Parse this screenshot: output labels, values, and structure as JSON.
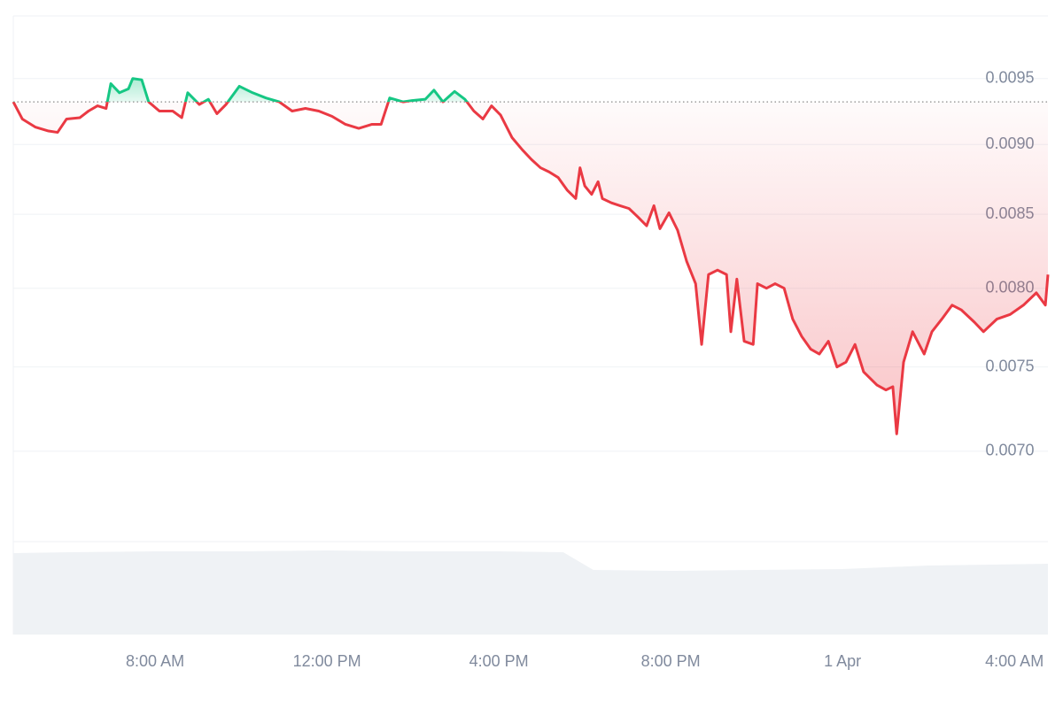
{
  "chart_data": {
    "type": "line",
    "log_scale": true,
    "grid": true,
    "xlim": [
      4.7,
      28.78
    ],
    "ylim": [
      0.0065,
      0.01
    ],
    "xticks": [
      {
        "value": 8,
        "label": "8:00 AM"
      },
      {
        "value": 12,
        "label": "12:00 PM"
      },
      {
        "value": 16,
        "label": "4:00 PM"
      },
      {
        "value": 20,
        "label": "8:00 PM"
      },
      {
        "value": 24,
        "label": "1 Apr"
      },
      {
        "value": 28,
        "label": "4:00 AM"
      }
    ],
    "yticks": [
      0.0095,
      {
        "value": 0.009,
        "label": "0.0090"
      },
      0.0085,
      {
        "value": 0.008,
        "label": "0.0080"
      },
      0.0075,
      {
        "value": 0.007,
        "label": "0.0070"
      }
    ],
    "baseline": 0.00932,
    "up_color": "#16c784",
    "down_color": "#ea3943",
    "x": [
      4.7,
      4.91,
      5.21,
      5.52,
      5.73,
      5.94,
      6.25,
      6.45,
      6.66,
      6.86,
      6.97,
      7.17,
      7.38,
      7.48,
      7.69,
      7.85,
      8.1,
      8.41,
      8.62,
      8.76,
      9.03,
      9.24,
      9.44,
      9.65,
      9.96,
      10.27,
      10.58,
      10.89,
      11.19,
      11.5,
      11.81,
      12.12,
      12.43,
      12.74,
      13.05,
      13.26,
      13.46,
      13.77,
      13.98,
      14.29,
      14.49,
      14.7,
      14.97,
      15.21,
      15.42,
      15.63,
      15.83,
      16.04,
      16.31,
      16.55,
      16.76,
      16.97,
      17.17,
      17.38,
      17.59,
      17.79,
      17.89,
      18.0,
      18.16,
      18.31,
      18.41,
      18.62,
      18.82,
      19.03,
      19.24,
      19.44,
      19.61,
      19.75,
      19.96,
      20.16,
      20.37,
      20.58,
      20.72,
      20.88,
      21.09,
      21.3,
      21.4,
      21.54,
      21.71,
      21.92,
      22.02,
      22.23,
      22.43,
      22.64,
      22.84,
      23.05,
      23.26,
      23.46,
      23.67,
      23.87,
      24.08,
      24.29,
      24.49,
      24.8,
      25.01,
      25.17,
      25.26,
      25.42,
      25.63,
      25.9,
      26.08,
      26.31,
      26.55,
      26.76,
      27.07,
      27.28,
      27.59,
      27.9,
      28.21,
      28.51,
      28.72,
      28.78
    ],
    "values": [
      0.00932,
      0.00919,
      0.00913,
      0.0091,
      0.00909,
      0.00919,
      0.0092,
      0.00925,
      0.00929,
      0.00927,
      0.00946,
      0.00939,
      0.00942,
      0.0095,
      0.00949,
      0.00932,
      0.00925,
      0.00925,
      0.0092,
      0.00939,
      0.0093,
      0.00934,
      0.00923,
      0.0093,
      0.00944,
      0.00939,
      0.00935,
      0.00932,
      0.00925,
      0.00927,
      0.00925,
      0.00921,
      0.00915,
      0.00912,
      0.00915,
      0.00915,
      0.00935,
      0.00932,
      0.00933,
      0.00934,
      0.00941,
      0.00932,
      0.0094,
      0.00934,
      0.00925,
      0.00919,
      0.00929,
      0.00922,
      0.00905,
      0.00896,
      0.00889,
      0.00883,
      0.0088,
      0.00876,
      0.00867,
      0.00861,
      0.00883,
      0.0087,
      0.00864,
      0.00873,
      0.00861,
      0.00858,
      0.00856,
      0.00854,
      0.00848,
      0.00842,
      0.00856,
      0.0084,
      0.00851,
      0.00839,
      0.00818,
      0.00803,
      0.00764,
      0.00809,
      0.00812,
      0.00809,
      0.00772,
      0.00806,
      0.00766,
      0.00764,
      0.00803,
      0.008,
      0.00803,
      0.008,
      0.0078,
      0.00769,
      0.00761,
      0.00758,
      0.00766,
      0.0075,
      0.00753,
      0.00764,
      0.00747,
      0.00739,
      0.00736,
      0.00738,
      0.0071,
      0.00753,
      0.00772,
      0.00758,
      0.00772,
      0.0078,
      0.00789,
      0.00786,
      0.00778,
      0.00772,
      0.0078,
      0.00783,
      0.00789,
      0.00797,
      0.00789,
      0.00809
    ],
    "volume": {
      "color": "#eff2f5",
      "ylim": [
        0,
        100
      ],
      "x": [
        4.7,
        6.0,
        8.0,
        10.0,
        12.0,
        14.0,
        16.0,
        17.5,
        18.2,
        20.0,
        22.0,
        24.0,
        26.0,
        28.78
      ],
      "values": [
        92,
        93,
        94,
        94,
        95,
        94,
        94,
        93,
        73,
        72,
        73,
        74,
        78,
        80
      ]
    }
  }
}
